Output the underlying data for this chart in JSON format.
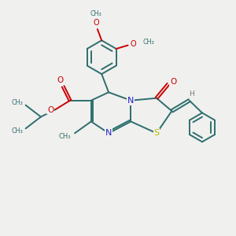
{
  "background_color": "#f0f0ee",
  "bond_color": "#2d6e6e",
  "n_color": "#2222cc",
  "s_color": "#b8b800",
  "o_color": "#cc0000",
  "h_color": "#777777",
  "figsize": [
    3.0,
    3.0
  ],
  "dpi": 100,
  "xlim": [
    0,
    10
  ],
  "ylim": [
    0,
    10
  ]
}
